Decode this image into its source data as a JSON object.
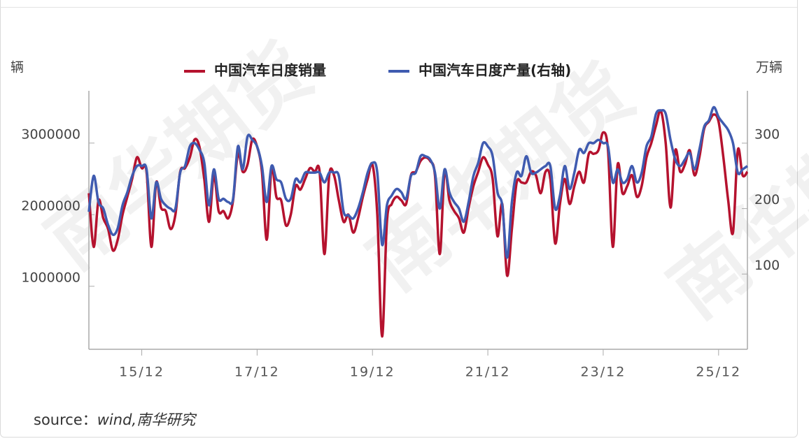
{
  "chart_data": {
    "type": "line",
    "y_label": "辆",
    "y2_label": "万辆",
    "watermark": "南华期货",
    "source_label": "source：",
    "source_value": "wind,南华研究",
    "categories": [
      null,
      null,
      null,
      null,
      null,
      null,
      null,
      null,
      null,
      null,
      null,
      "15/12",
      null,
      null,
      null,
      null,
      null,
      null,
      null,
      null,
      null,
      null,
      null,
      null,
      null,
      null,
      null,
      null,
      null,
      null,
      null,
      null,
      null,
      null,
      null,
      "17/12",
      null,
      null,
      null,
      null,
      null,
      null,
      null,
      null,
      null,
      null,
      null,
      null,
      null,
      null,
      null,
      null,
      null,
      null,
      null,
      null,
      null,
      null,
      null,
      "19/12",
      null,
      null,
      null,
      null,
      null,
      null,
      null,
      null,
      null,
      null,
      null,
      null,
      null,
      null,
      null,
      null,
      null,
      null,
      null,
      null,
      null,
      null,
      null,
      "21/12",
      null,
      null,
      null,
      null,
      null,
      null,
      null,
      null,
      null,
      null,
      null,
      null,
      null,
      null,
      null,
      null,
      null,
      null,
      null,
      null,
      null,
      null,
      null,
      "23/12",
      null,
      null,
      null,
      null,
      null,
      null,
      null,
      null,
      null,
      null,
      null,
      null,
      null,
      null,
      null,
      null,
      null,
      null,
      null,
      null,
      null,
      null,
      null,
      "25/12",
      null,
      null,
      null,
      null,
      null,
      null
    ],
    "series": [
      {
        "name": "中国汽车日度销量",
        "color": "#b5122e",
        "values": [
          2300000,
          1550000,
          2200000,
          1950000,
          1800000,
          1500000,
          1650000,
          2000000,
          2250000,
          2500000,
          2800000,
          2650000,
          2600000,
          1550000,
          2450000,
          2100000,
          2050000,
          1800000,
          2000000,
          2600000,
          2650000,
          2800000,
          3050000,
          2950000,
          2500000,
          1900000,
          2550000,
          2050000,
          2050000,
          1950000,
          2200000,
          2850000,
          2600000,
          2700000,
          3050000,
          2950000,
          2600000,
          1650000,
          2650000,
          2250000,
          2200000,
          1850000,
          2000000,
          2400000,
          2350000,
          2500000,
          2650000,
          2600000,
          2600000,
          1450000,
          2550000,
          2550000,
          2200000,
          1900000,
          2000000,
          1750000,
          1950000,
          2250000,
          2500000,
          2700000,
          2000000,
          300000,
          1900000,
          2150000,
          2250000,
          2200000,
          2150000,
          2550000,
          2600000,
          2750000,
          2800000,
          2750000,
          2550000,
          1450000,
          2600000,
          2200000,
          2050000,
          1950000,
          1750000,
          2100000,
          2400000,
          2600000,
          2800000,
          2700000,
          2500000,
          1700000,
          2150000,
          1150000,
          1800000,
          2450000,
          2450000,
          2450000,
          2600000,
          2550000,
          2300000,
          2600000,
          2500000,
          1600000,
          2150000,
          2500000,
          2150000,
          2400000,
          2600000,
          2450000,
          2850000,
          2850000,
          2900000,
          3150000,
          2900000,
          1550000,
          2700000,
          2300000,
          2400000,
          2550000,
          2250000,
          2400000,
          2800000,
          3000000,
          3250000,
          3450000,
          3000000,
          2100000,
          2900000,
          2600000,
          2700000,
          2900000,
          2550000,
          2800000,
          3200000,
          3300000,
          3400000,
          3300000,
          2800000,
          2200000,
          1750000,
          2900000,
          2550000,
          2600000
        ]
      },
      {
        "name": "中国汽车日度产量(右轴)",
        "color": "#3f5bb0",
        "axis": "y2",
        "values": [
          195,
          250,
          210,
          200,
          175,
          160,
          170,
          205,
          225,
          250,
          265,
          265,
          260,
          185,
          240,
          215,
          205,
          200,
          200,
          255,
          265,
          295,
          300,
          290,
          270,
          205,
          260,
          215,
          215,
          210,
          215,
          295,
          260,
          310,
          305,
          295,
          265,
          210,
          265,
          245,
          240,
          215,
          215,
          245,
          240,
          255,
          255,
          255,
          255,
          240,
          255,
          255,
          250,
          195,
          190,
          185,
          200,
          225,
          255,
          270,
          255,
          145,
          205,
          220,
          230,
          225,
          215,
          250,
          255,
          280,
          280,
          275,
          255,
          200,
          260,
          225,
          210,
          200,
          180,
          210,
          250,
          270,
          300,
          295,
          280,
          225,
          205,
          125,
          210,
          255,
          250,
          280,
          255,
          255,
          260,
          265,
          265,
          200,
          220,
          265,
          230,
          255,
          290,
          285,
          300,
          300,
          305,
          300,
          295,
          240,
          260,
          240,
          245,
          265,
          240,
          255,
          295,
          310,
          345,
          350,
          345,
          305,
          275,
          265,
          275,
          285,
          260,
          290,
          325,
          335,
          355,
          340,
          330,
          320,
          300,
          255,
          260,
          265
        ]
      }
    ],
    "ylim": [
      120000,
      3730000
    ],
    "yticks": [
      1000000,
      2000000,
      3000000
    ],
    "y2lim": [
      -15,
      380
    ],
    "y2ticks": [
      100,
      200,
      300
    ],
    "legend": "top"
  }
}
